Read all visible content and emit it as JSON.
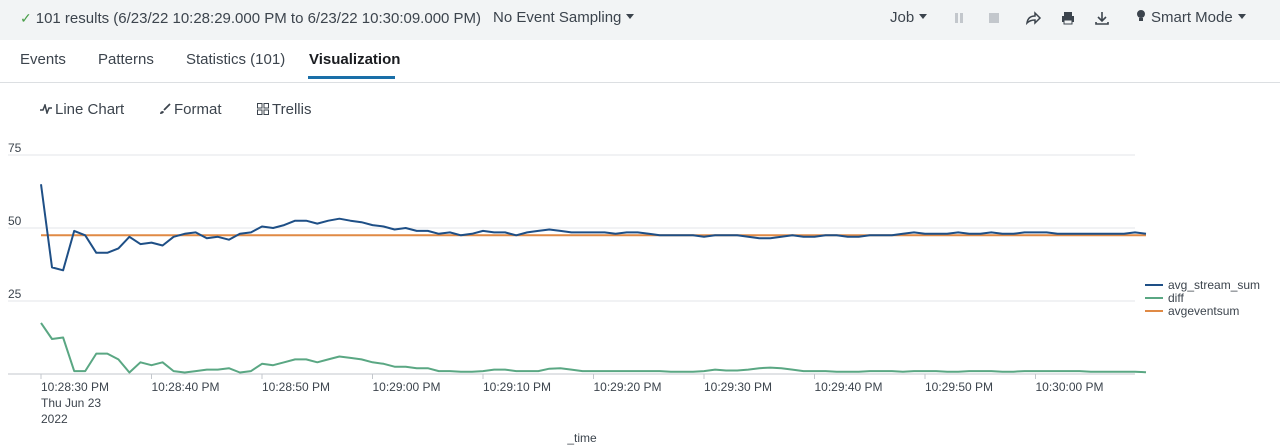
{
  "topbar": {
    "results_text": "101 results (6/23/22 10:28:29.000 PM to 6/23/22 10:30:09.000 PM)",
    "sampling_label": "No Event Sampling",
    "job_label": "Job",
    "mode_label": "Smart Mode"
  },
  "tabs": [
    {
      "label": "Events"
    },
    {
      "label": "Patterns"
    },
    {
      "label": "Statistics (101)"
    },
    {
      "label": "Visualization"
    }
  ],
  "viz_toolbar": {
    "chart_type_label": "Line Chart",
    "format_label": "Format",
    "trellis_label": "Trellis"
  },
  "colors": {
    "avg_stream_sum": "#1e4f86",
    "diff": "#5aa783",
    "avgeventsum": "#e08a45"
  },
  "chart_data": {
    "type": "line",
    "xlabel": "_time",
    "ylabel": "",
    "ylim": [
      0,
      75
    ],
    "y_ticks": [
      "75",
      "50",
      "25"
    ],
    "x_tick_labels": [
      "10:28:30 PM",
      "10:28:40 PM",
      "10:28:50 PM",
      "10:29:00 PM",
      "10:29:10 PM",
      "10:29:20 PM",
      "10:29:30 PM",
      "10:29:40 PM",
      "10:29:50 PM",
      "10:30:00 PM"
    ],
    "x_first_sublabel": [
      "Thu Jun 23",
      "2022"
    ],
    "x_start": "10:28:30 PM",
    "x_step_seconds": 1,
    "grid": true,
    "legend_position": "right",
    "series": [
      {
        "name": "avg_stream_sum",
        "values": [
          65,
          36.5,
          35.5,
          49,
          47.5,
          41.5,
          41.5,
          43,
          47,
          44.5,
          45,
          44,
          47,
          48,
          48.5,
          46.5,
          47,
          46,
          48,
          48.5,
          50.5,
          50,
          51,
          52.5,
          52.5,
          51.5,
          52.5,
          53.2,
          52.5,
          52,
          51,
          50.5,
          49.5,
          50,
          49,
          49,
          48,
          48.5,
          47.5,
          48,
          49,
          48.5,
          48.5,
          47.5,
          48.5,
          49,
          49.5,
          49,
          48.5,
          48.5,
          48.5,
          48.5,
          48,
          48.5,
          48.5,
          48,
          47.5,
          47.5,
          47.5,
          47.5,
          47,
          47.5,
          47.5,
          47.5,
          47,
          46.5,
          46.5,
          47,
          47.5,
          47,
          47,
          47.5,
          47.5,
          47,
          47,
          47.5,
          47.5,
          47.5,
          48,
          48.5,
          48,
          48,
          48,
          48.5,
          48,
          48,
          48.5,
          48,
          48,
          48.5,
          48.5,
          48.5,
          48,
          48,
          48,
          48,
          48,
          48,
          48,
          48.5,
          48
        ]
      },
      {
        "name": "diff",
        "values": [
          17.5,
          12,
          12.5,
          1,
          1,
          7,
          7,
          5,
          0.5,
          4,
          3,
          4,
          1,
          0.5,
          1,
          1.5,
          1.5,
          2,
          0.5,
          1,
          3.5,
          3,
          4,
          5,
          5,
          4,
          5,
          6,
          5.5,
          5,
          4,
          3.5,
          2.5,
          2.5,
          2,
          2,
          1,
          1,
          0.8,
          0.8,
          1,
          1.5,
          1.5,
          1,
          1,
          1,
          1.8,
          2,
          1.5,
          1,
          1,
          1,
          1,
          1,
          1,
          1,
          1,
          0.8,
          0.8,
          0.8,
          1,
          1.5,
          1.2,
          1.2,
          1.5,
          2,
          2.2,
          2,
          1.5,
          1,
          1,
          1,
          0.8,
          0.8,
          0.8,
          1,
          1,
          1,
          0.8,
          1,
          1,
          1,
          0.8,
          0.8,
          1,
          1,
          1,
          0.8,
          0.8,
          1,
          1,
          1,
          1,
          1,
          1,
          0.8,
          0.8,
          0.8,
          0.8,
          0.8,
          0.6
        ]
      },
      {
        "name": "avgeventsum",
        "values": [
          47.5,
          47.5,
          47.5,
          47.5,
          47.5,
          47.5,
          47.5,
          47.5,
          47.5,
          47.5,
          47.5,
          47.5,
          47.5,
          47.5,
          47.5,
          47.5,
          47.5,
          47.5,
          47.5,
          47.5,
          47.5,
          47.5,
          47.5,
          47.5,
          47.5,
          47.5,
          47.5,
          47.5,
          47.5,
          47.5,
          47.5,
          47.5,
          47.5,
          47.5,
          47.5,
          47.5,
          47.5,
          47.5,
          47.5,
          47.5,
          47.5,
          47.5,
          47.5,
          47.5,
          47.5,
          47.5,
          47.5,
          47.5,
          47.5,
          47.5,
          47.5,
          47.5,
          47.5,
          47.5,
          47.5,
          47.5,
          47.5,
          47.5,
          47.5,
          47.5,
          47.5,
          47.5,
          47.5,
          47.5,
          47.5,
          47.5,
          47.5,
          47.5,
          47.5,
          47.5,
          47.5,
          47.5,
          47.5,
          47.5,
          47.5,
          47.5,
          47.5,
          47.5,
          47.5,
          47.5,
          47.5,
          47.5,
          47.5,
          47.5,
          47.5,
          47.5,
          47.5,
          47.5,
          47.5,
          47.5,
          47.5,
          47.5,
          47.5,
          47.5,
          47.5,
          47.5,
          47.5,
          47.5,
          47.5,
          47.5,
          47.5
        ]
      }
    ]
  }
}
